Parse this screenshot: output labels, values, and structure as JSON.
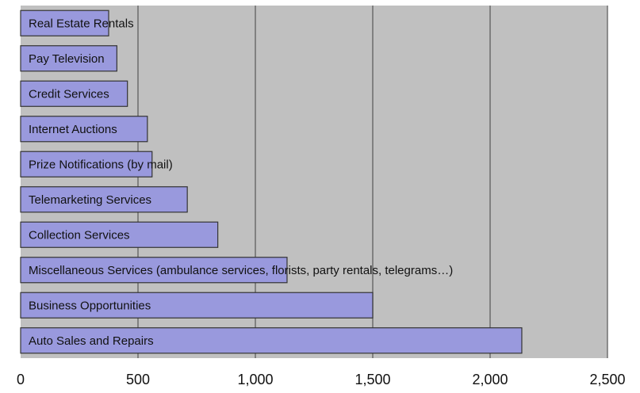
{
  "chart_data": {
    "type": "bar",
    "orientation": "horizontal",
    "categories": [
      "Real Estate Rentals",
      "Pay Television",
      "Credit Services",
      "Internet Auctions",
      "Prize Notifications (by mail)",
      "Telemarketing Services",
      "Collection Services",
      "Miscellaneous Services (ambulance services, florists, party rentals, telegrams…)",
      "Business Opportunities",
      "Auto Sales and Repairs"
    ],
    "values": [
      375,
      410,
      455,
      540,
      560,
      710,
      840,
      1135,
      1500,
      2135
    ],
    "title": "",
    "xlabel": "",
    "ylabel": "",
    "xlim": [
      0,
      2500
    ],
    "xticks": [
      0,
      500,
      1000,
      1500,
      2000,
      2500
    ],
    "xtick_labels": [
      "0",
      "500",
      "1,000",
      "1,500",
      "2,000",
      "2,500"
    ],
    "grid": "vertical gridlines",
    "legend": "none",
    "colors": {
      "plot_background": "#c0c0c0",
      "bar_fill": "#9999dd",
      "bar_stroke": "#333333",
      "gridline": "#555555"
    }
  }
}
